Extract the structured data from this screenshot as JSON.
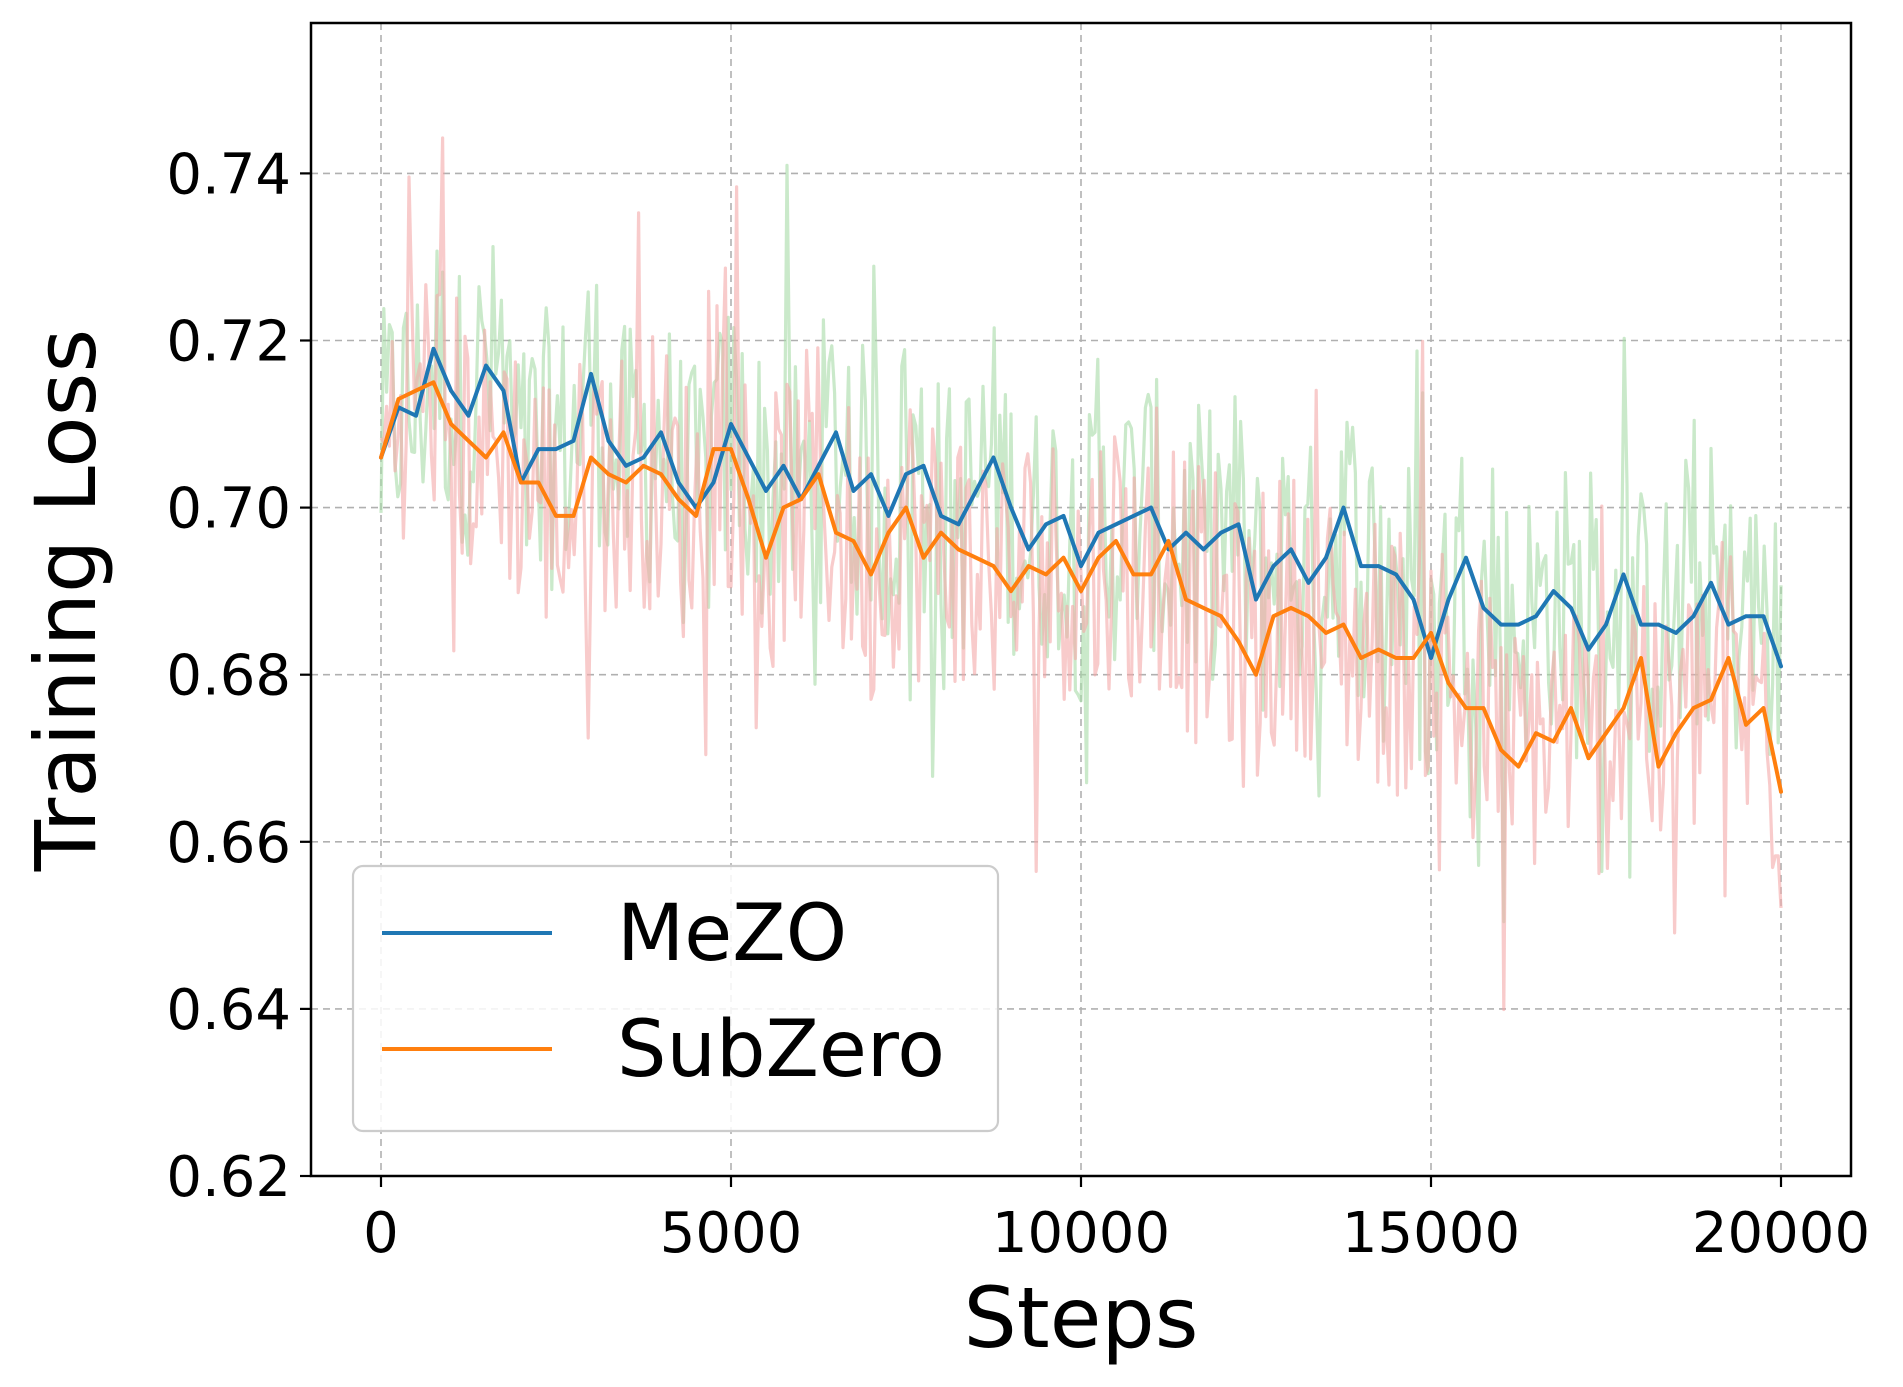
{
  "chart_data": {
    "type": "line",
    "xlabel": "Steps",
    "ylabel": "Training Loss",
    "xlim": [
      -1000,
      21000
    ],
    "ylim": [
      0.62,
      0.758
    ],
    "xticks": [
      0,
      5000,
      10000,
      15000,
      20000
    ],
    "xtick_labels": [
      "0",
      "5000",
      "10000",
      "15000",
      "20000"
    ],
    "yticks": [
      0.62,
      0.64,
      0.66,
      0.68,
      0.7,
      0.72,
      0.74
    ],
    "ytick_labels": [
      "0.62",
      "0.64",
      "0.66",
      "0.68",
      "0.70",
      "0.72",
      "0.74"
    ],
    "grid": true,
    "legend_position": "lower-left",
    "colors": {
      "mezo": "#1f77b4",
      "subzero": "#ff7f0e",
      "mezo_raw": "#a6dba6",
      "subzero_raw": "#f4a9a9"
    },
    "series": [
      {
        "name": "MeZO",
        "color": "#1f77b4",
        "x": [
          0,
          250,
          500,
          750,
          1000,
          1250,
          1500,
          1750,
          2000,
          2250,
          2500,
          2750,
          3000,
          3250,
          3500,
          3750,
          4000,
          4250,
          4500,
          4750,
          5000,
          5250,
          5500,
          5750,
          6000,
          6250,
          6500,
          6750,
          7000,
          7250,
          7500,
          7750,
          8000,
          8250,
          8500,
          8750,
          9000,
          9250,
          9500,
          9750,
          10000,
          10250,
          10500,
          10750,
          11000,
          11250,
          11500,
          11750,
          12000,
          12250,
          12500,
          12750,
          13000,
          13250,
          13500,
          13750,
          14000,
          14250,
          14500,
          14750,
          15000,
          15250,
          15500,
          15750,
          16000,
          16250,
          16500,
          16750,
          17000,
          17250,
          17500,
          17750,
          18000,
          18250,
          18500,
          18750,
          19000,
          19250,
          19500,
          19750,
          20000
        ],
        "values": [
          0.706,
          0.712,
          0.711,
          0.719,
          0.714,
          0.711,
          0.717,
          0.714,
          0.703,
          0.707,
          0.707,
          0.708,
          0.716,
          0.708,
          0.705,
          0.706,
          0.709,
          0.703,
          0.7,
          0.703,
          0.71,
          0.706,
          0.702,
          0.705,
          0.701,
          0.705,
          0.709,
          0.702,
          0.704,
          0.699,
          0.704,
          0.705,
          0.699,
          0.698,
          0.702,
          0.706,
          0.7,
          0.695,
          0.698,
          0.699,
          0.693,
          0.697,
          0.698,
          0.699,
          0.7,
          0.695,
          0.697,
          0.695,
          0.697,
          0.698,
          0.689,
          0.693,
          0.695,
          0.691,
          0.694,
          0.7,
          0.693,
          0.693,
          0.692,
          0.689,
          0.682,
          0.689,
          0.694,
          0.688,
          0.686,
          0.686,
          0.687,
          0.69,
          0.688,
          0.683,
          0.686,
          0.692,
          0.686,
          0.686,
          0.685,
          0.687,
          0.691,
          0.686,
          0.687,
          0.687,
          0.681
        ]
      },
      {
        "name": "SubZero",
        "color": "#ff7f0e",
        "x": [
          0,
          250,
          500,
          750,
          1000,
          1250,
          1500,
          1750,
          2000,
          2250,
          2500,
          2750,
          3000,
          3250,
          3500,
          3750,
          4000,
          4250,
          4500,
          4750,
          5000,
          5250,
          5500,
          5750,
          6000,
          6250,
          6500,
          6750,
          7000,
          7250,
          7500,
          7750,
          8000,
          8250,
          8500,
          8750,
          9000,
          9250,
          9500,
          9750,
          10000,
          10250,
          10500,
          10750,
          11000,
          11250,
          11500,
          11750,
          12000,
          12250,
          12500,
          12750,
          13000,
          13250,
          13500,
          13750,
          14000,
          14250,
          14500,
          14750,
          15000,
          15250,
          15500,
          15750,
          16000,
          16250,
          16500,
          16750,
          17000,
          17250,
          17500,
          17750,
          18000,
          18250,
          18500,
          18750,
          19000,
          19250,
          19500,
          19750,
          20000
        ],
        "values": [
          0.706,
          0.713,
          0.714,
          0.715,
          0.71,
          0.708,
          0.706,
          0.709,
          0.703,
          0.703,
          0.699,
          0.699,
          0.706,
          0.704,
          0.703,
          0.705,
          0.704,
          0.701,
          0.699,
          0.707,
          0.707,
          0.701,
          0.694,
          0.7,
          0.701,
          0.704,
          0.697,
          0.696,
          0.692,
          0.697,
          0.7,
          0.694,
          0.697,
          0.695,
          0.694,
          0.693,
          0.69,
          0.693,
          0.692,
          0.694,
          0.69,
          0.694,
          0.696,
          0.692,
          0.692,
          0.696,
          0.689,
          0.688,
          0.687,
          0.684,
          0.68,
          0.687,
          0.688,
          0.687,
          0.685,
          0.686,
          0.682,
          0.683,
          0.682,
          0.682,
          0.685,
          0.679,
          0.676,
          0.676,
          0.671,
          0.669,
          0.673,
          0.672,
          0.676,
          0.67,
          0.673,
          0.676,
          0.682,
          0.669,
          0.673,
          0.676,
          0.677,
          0.682,
          0.674,
          0.676,
          0.666
        ]
      }
    ]
  }
}
